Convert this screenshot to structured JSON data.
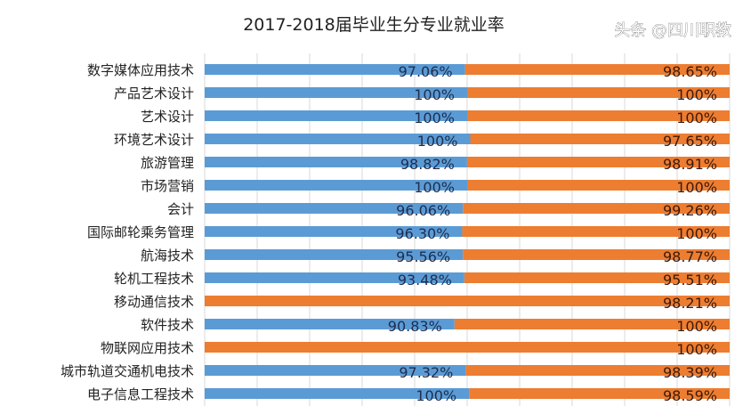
{
  "chart_data": {
    "type": "bar",
    "orientation": "horizontal",
    "stacking": "100%-stacked",
    "title": "2017-2018届毕业生分专业就业率",
    "categories": [
      "数字媒体应用技术",
      "产品艺术设计",
      "艺术设计",
      "环境艺术设计",
      "旅游管理",
      "市场营销",
      "会计",
      "国际邮轮乘务管理",
      "航海技术",
      "轮机工程技术",
      "移动通信技术",
      "软件技术",
      "物联网应用技术",
      "城市轨道交通机电技术",
      "电子信息工程技术"
    ],
    "series": [
      {
        "color": "#5b9bd5",
        "values": [
          97.06,
          100,
          100,
          100,
          98.82,
          100,
          96.06,
          96.3,
          95.56,
          93.48,
          null,
          90.83,
          null,
          97.32,
          100
        ],
        "labels": [
          "97.06%",
          "100%",
          "100%",
          "100%",
          "98.82%",
          "100%",
          "96.06%",
          "96.30%",
          "95.56%",
          "93.48%",
          "",
          "90.83%",
          "",
          "97.32%",
          "100%"
        ]
      },
      {
        "color": "#ed7d31",
        "values": [
          98.65,
          100,
          100,
          97.65,
          98.91,
          100,
          99.26,
          100,
          98.77,
          95.51,
          98.21,
          100,
          100,
          98.39,
          98.59
        ],
        "labels": [
          "98.65%",
          "100%",
          "100%",
          "97.65%",
          "98.91%",
          "100%",
          "99.26%",
          "100%",
          "98.77%",
          "95.51%",
          "98.21%",
          "100%",
          "100%",
          "98.39%",
          "98.59%"
        ]
      }
    ],
    "xlim": [
      0,
      100
    ],
    "grid": true,
    "legend": "none"
  },
  "watermark": "头条 @四川职教"
}
